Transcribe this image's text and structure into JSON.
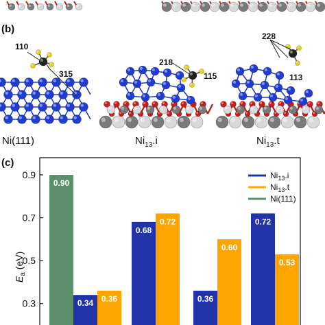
{
  "panel_b": {
    "letter": "(b)",
    "structures": [
      {
        "label_main": "Ni(111)",
        "label_sub": "",
        "label_tail": "",
        "annotations": [
          "110",
          "315"
        ]
      },
      {
        "label_main": "Ni",
        "label_sub": "13",
        "label_tail": ".i",
        "annotations": [
          "218",
          "115"
        ]
      },
      {
        "label_main": "Ni",
        "label_sub": "13",
        "label_tail": ".t",
        "annotations": [
          "228",
          "113"
        ]
      }
    ]
  },
  "panel_c": {
    "letter": "(c)",
    "ylabel_main": "E",
    "ylabel_sub": "a",
    "ylabel_unit": " (eV)"
  },
  "colors": {
    "ni13_i": "#2233a8",
    "ni13_t": "#ffa500",
    "ni111": "#5e8f6b",
    "ni_atom": "#1f3ccf",
    "o_atom": "#c41e1e",
    "metal_gray": "#7a7a7a",
    "metal_light": "#d9d9d9",
    "carbon": "#222222",
    "hydrogen": "#e6d21a"
  },
  "chart_data": {
    "type": "bar",
    "ylim": [
      0.2,
      0.98
    ],
    "yticks": [
      0.3,
      0.5,
      0.7,
      0.9
    ],
    "legend": {
      "placement": "top-right",
      "entries": [
        {
          "main": "Ni",
          "sub": "13",
          "tail": ".i"
        },
        {
          "main": "Ni",
          "sub": "13",
          "tail": ".t"
        },
        {
          "main": "Ni(111)",
          "sub": "",
          "tail": ""
        }
      ]
    },
    "groups": [
      {
        "bars": [
          {
            "series": "ni111",
            "value": 0.9,
            "label": "0.90"
          },
          {
            "series": "ni13_i",
            "value": 0.34,
            "label": "0.34"
          },
          {
            "series": "ni13_t",
            "value": 0.36,
            "label": "0.36"
          }
        ]
      },
      {
        "bars": [
          {
            "series": "ni13_i",
            "value": 0.68,
            "label": "0.68"
          },
          {
            "series": "ni13_t",
            "value": 0.72,
            "label": "0.72"
          }
        ]
      },
      {
        "bars": [
          {
            "series": "ni13_i",
            "value": 0.36,
            "label": "0.36"
          },
          {
            "series": "ni13_t",
            "value": 0.6,
            "label": "0.60"
          }
        ]
      },
      {
        "bars": [
          {
            "series": "ni13_i",
            "value": 0.72,
            "label": "0.72"
          },
          {
            "series": "ni13_t",
            "value": 0.53,
            "label": "0.53"
          }
        ]
      }
    ]
  }
}
